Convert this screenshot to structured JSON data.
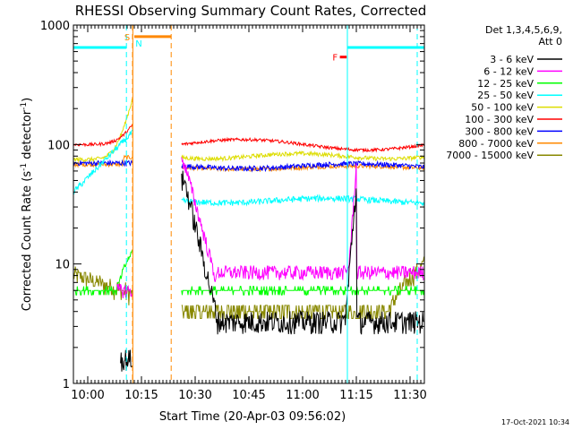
{
  "chart_data": {
    "type": "line",
    "title": "RHESSI Observing Summary Count Rates, Corrected",
    "xlabel": "Start Time (20-Apr-03 09:56:02)",
    "ylabel_main": "Corrected Count Rate (s",
    "ylabel_exp1": "-1",
    "ylabel_mid": " detector",
    "ylabel_exp2": "-1",
    "ylabel_end": ")",
    "y_scale": "log",
    "ylim": [
      1,
      1000
    ],
    "y_ticks": [
      "1",
      "10",
      "100",
      "1000"
    ],
    "xlim_minutes": [
      0,
      98
    ],
    "x_ticks": [
      {
        "label": "10:00",
        "minute": 4
      },
      {
        "label": "10:15",
        "minute": 19
      },
      {
        "label": "10:30",
        "minute": 34
      },
      {
        "label": "10:45",
        "minute": 49
      },
      {
        "label": "11:00",
        "minute": 64
      },
      {
        "label": "11:15",
        "minute": 79
      },
      {
        "label": "11:30",
        "minute": 94
      }
    ],
    "legend_title_1": "Det 1,3,4,5,6,9,",
    "legend_title_2": "Att 0",
    "legend_placement": "right",
    "series": [
      {
        "name": "3 - 6 keV",
        "color": "#000000"
      },
      {
        "name": "6 - 12 keV",
        "color": "#ff00ff"
      },
      {
        "name": "12 - 25 keV",
        "color": "#00ff00"
      },
      {
        "name": "25 - 50 keV",
        "color": "#00ffff"
      },
      {
        "name": "50 - 100 keV",
        "color": "#dddd00"
      },
      {
        "name": "100 - 300 keV",
        "color": "#ff0000"
      },
      {
        "name": "300 - 800 keV",
        "color": "#0000ff"
      },
      {
        "name": "800 - 7000 keV",
        "color": "#ff8800"
      },
      {
        "name": "7000 - 15000 keV",
        "color": "#888800"
      }
    ],
    "flags": [
      {
        "label": "S",
        "color": "#ff8800"
      },
      {
        "label": "N",
        "color": "#00ffff"
      },
      {
        "label": "F",
        "color": "#ff0000"
      }
    ],
    "timestamp": "17-Oct-2021 10:34"
  }
}
